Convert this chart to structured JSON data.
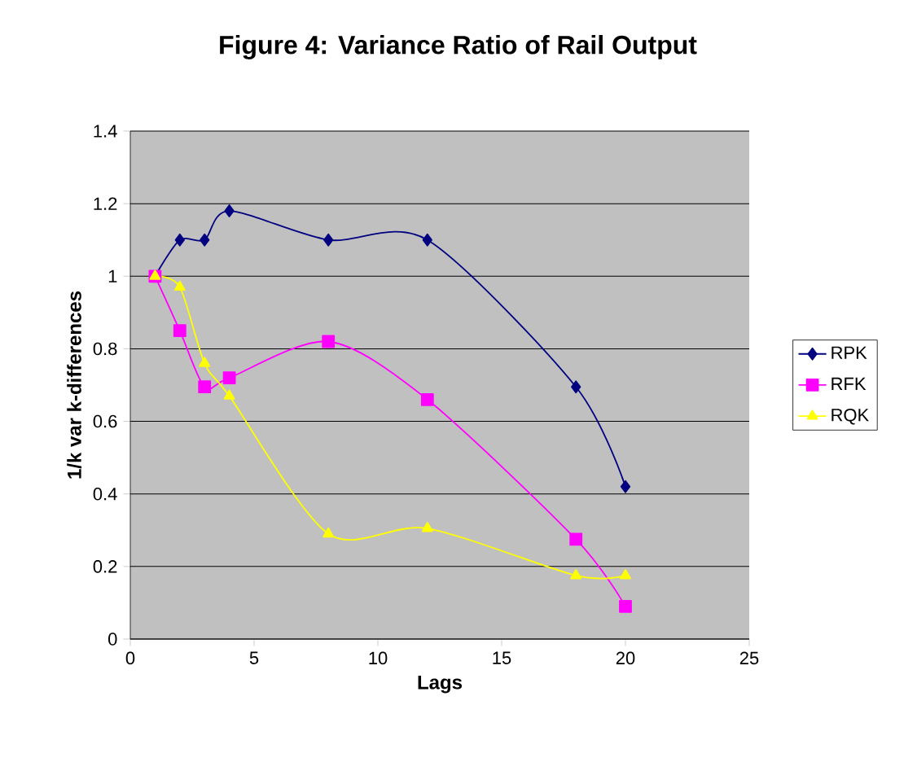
{
  "chart_data": {
    "type": "line",
    "title": "Figure 4: Variance Ratio of Rail Output",
    "xlabel": "Lags",
    "ylabel": "1/k var k-differences",
    "x": [
      1,
      2,
      3,
      4,
      8,
      12,
      18,
      20
    ],
    "series": [
      {
        "name": "RPK",
        "color": "#000080",
        "marker": "diamond",
        "values": [
          1.0,
          1.1,
          1.1,
          1.18,
          1.1,
          1.1,
          0.695,
          0.42
        ]
      },
      {
        "name": "RFK",
        "color": "#ff00ff",
        "marker": "square",
        "values": [
          1.0,
          0.85,
          0.695,
          0.72,
          0.82,
          0.66,
          0.275,
          0.09
        ]
      },
      {
        "name": "RQK",
        "color": "#ffff00",
        "marker": "triangle",
        "values": [
          1.0,
          0.97,
          0.76,
          0.67,
          0.29,
          0.305,
          0.175,
          0.175
        ]
      }
    ],
    "xlim": [
      0,
      25
    ],
    "xticks": [
      0,
      5,
      10,
      15,
      20,
      25
    ],
    "ylim": [
      0,
      1.4
    ],
    "yticks": [
      0,
      0.2,
      0.4,
      0.6,
      0.8,
      1,
      1.2,
      1.4
    ],
    "grid": "y",
    "legend": "right",
    "line_style": "solid"
  }
}
